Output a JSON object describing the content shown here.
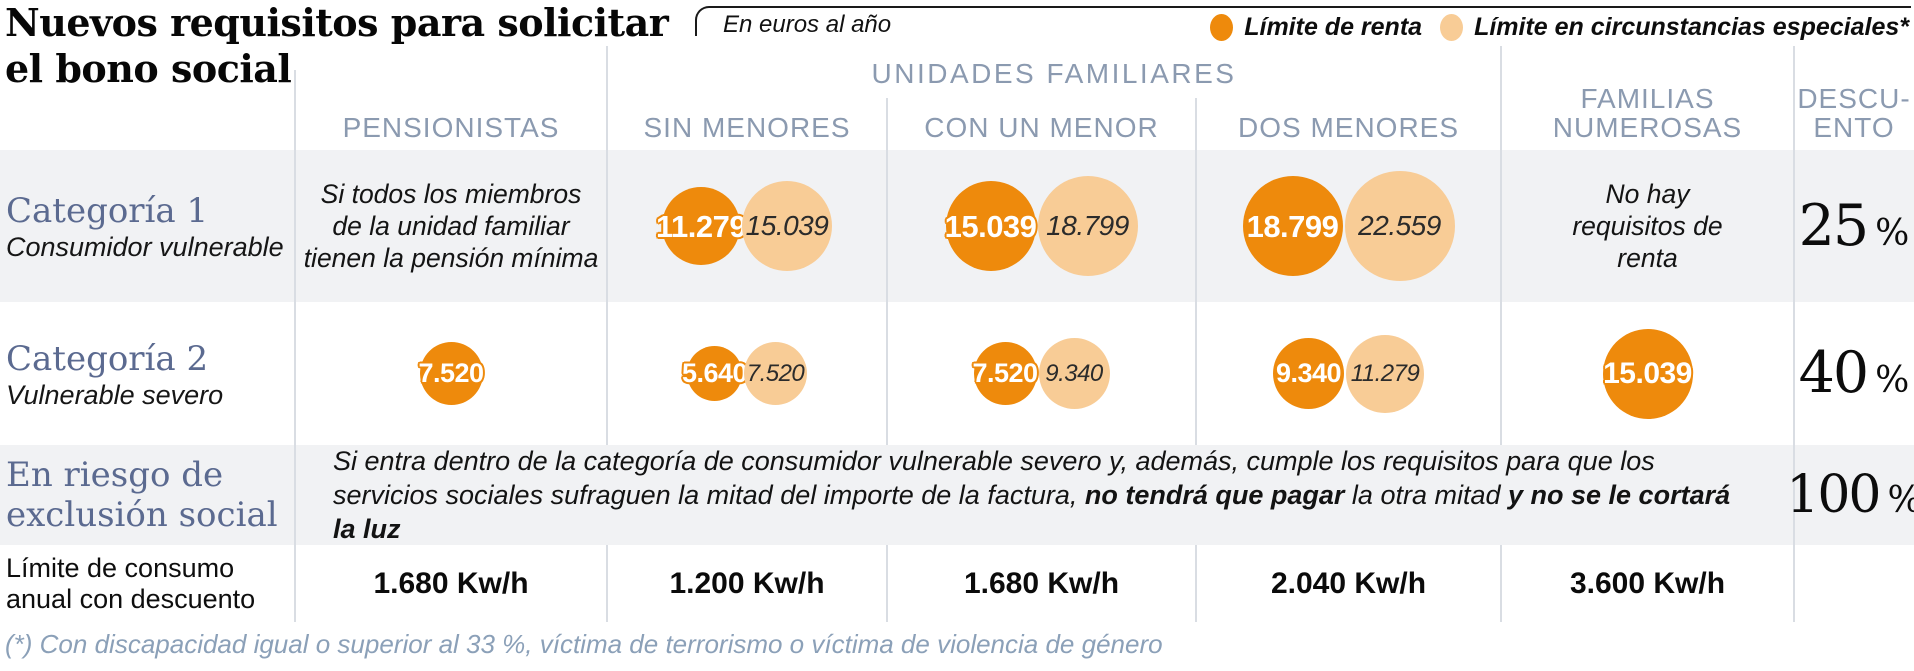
{
  "title": {
    "line1": "Nuevos requisitos para solicitar",
    "line2": "el bono social"
  },
  "unit_note": "En euros al año",
  "legend": {
    "renta": "Límite de renta",
    "especial": "Límite en circunstancias especiales*"
  },
  "columns": {
    "group": "UNIDADES FAMILIARES",
    "pensionistas": "PENSIONISTAS",
    "sin_menores": "SIN MENORES",
    "con_un_menor": "CON UN MENOR",
    "dos_menores": "DOS MENORES",
    "familias_line1": "FAMILIAS",
    "familias_line2": "NUMEROSAS",
    "descuento_line1": "DESCU-",
    "descuento_line2": "ENTO"
  },
  "rows": {
    "cat1": {
      "name": "Categoría 1",
      "subtitle": "Consumidor vulnerable",
      "pensionistas_note": "Si todos los miembros de la unidad familiar tienen la pensión mínima",
      "familias_note": "No hay requisitos de renta",
      "descuento": {
        "value": "25",
        "sign": "%"
      }
    },
    "cat2": {
      "name": "Categoría 2",
      "subtitle": "Vulnerable severo",
      "descuento": {
        "value": "40",
        "sign": "%"
      }
    },
    "riesgo": {
      "name_line1": "En riesgo de",
      "name_line2": "exclusión social",
      "text": {
        "normal1": "Si entra dentro de la categoría de consumidor vulnerable severo y, además, cumple los requisitos para que los servicios sociales sufraguen la mitad del importe de la factura, ",
        "bold1": "no tendrá que pagar",
        "normal2": " la otra mitad ",
        "bold2": "y no se le cortará la luz"
      },
      "descuento": {
        "value": "100",
        "sign": "%"
      }
    },
    "consumo": {
      "label_line1": "Límite de consumo",
      "label_line2": "anual con descuento",
      "values": [
        "1.680 Kw/h",
        "1.200 Kw/h",
        "1.680 Kw/h",
        "2.040 Kw/h",
        "3.600 Kw/h"
      ]
    }
  },
  "bubbles": {
    "cat1_sin_renta": {
      "display": "11.279",
      "value": 11279,
      "type": "renta"
    },
    "cat1_sin_especial": {
      "display": "15.039",
      "value": 15039,
      "type": "especial"
    },
    "cat1_con_renta": {
      "display": "15.039",
      "value": 15039,
      "type": "renta"
    },
    "cat1_con_especial": {
      "display": "18.799",
      "value": 18799,
      "type": "especial"
    },
    "cat1_dos_renta": {
      "display": "18.799",
      "value": 18799,
      "type": "renta"
    },
    "cat1_dos_especial": {
      "display": "22.559",
      "value": 22559,
      "type": "especial"
    },
    "cat2_pens_renta": {
      "display": "7.520",
      "value": 7520,
      "type": "renta"
    },
    "cat2_sin_renta": {
      "display": "5.640",
      "value": 5640,
      "type": "renta"
    },
    "cat2_sin_especial": {
      "display": "7.520",
      "value": 7520,
      "type": "especial"
    },
    "cat2_con_renta": {
      "display": "7.520",
      "value": 7520,
      "type": "renta"
    },
    "cat2_con_especial": {
      "display": "9.340",
      "value": 9340,
      "type": "especial"
    },
    "cat2_dos_renta": {
      "display": "9.340",
      "value": 9340,
      "type": "renta"
    },
    "cat2_dos_especial": {
      "display": "11.279",
      "value": 11279,
      "type": "especial"
    },
    "cat2_fam_renta": {
      "display": "15.039",
      "value": 15039,
      "type": "renta"
    }
  },
  "footnote": "(*) Con discapacidad igual o superior al 33 %, víctima de terrorismo o víctima de violencia de género",
  "colors": {
    "limite_renta": "#ee8a0c",
    "limite_especial": "#f8cc96",
    "header_blue_gray": "#8b9ab0",
    "category_slate": "#5b6a90",
    "row_shade": "#f1f2f4",
    "footnote_blue": "#8ba0b8"
  },
  "chart_data": {
    "type": "table",
    "title": "Nuevos requisitos para solicitar el bono social",
    "unit": "En euros al año",
    "legend": [
      "Límite de renta",
      "Límite en circunstancias especiales*"
    ],
    "legend_note": "(*) Con discapacidad igual o superior al 33 %, víctima de terrorismo o víctima de violencia de género",
    "columns": [
      "PENSIONISTAS",
      "SIN MENORES",
      "CON UN MENOR",
      "DOS MENORES",
      "FAMILIAS NUMEROSAS",
      "DESCUENTO"
    ],
    "bubble_encoding": "circle area proportional to income limit in euros per year",
    "rows": [
      {
        "category": "Categoría 1 (Consumidor vulnerable)",
        "pensionistas": "Si todos los miembros de la unidad familiar tienen la pensión mínima",
        "sin_menores": {
          "limite_renta": 11279,
          "limite_especial": 15039
        },
        "con_un_menor": {
          "limite_renta": 15039,
          "limite_especial": 18799
        },
        "dos_menores": {
          "limite_renta": 18799,
          "limite_especial": 22559
        },
        "familias_numerosas": "No hay requisitos de renta",
        "descuento_pct": 25
      },
      {
        "category": "Categoría 2 (Vulnerable severo)",
        "pensionistas": {
          "limite_renta": 7520
        },
        "sin_menores": {
          "limite_renta": 5640,
          "limite_especial": 7520
        },
        "con_un_menor": {
          "limite_renta": 7520,
          "limite_especial": 9340
        },
        "dos_menores": {
          "limite_renta": 9340,
          "limite_especial": 11279
        },
        "familias_numerosas": {
          "limite_renta": 15039
        },
        "descuento_pct": 40
      },
      {
        "category": "En riesgo de exclusión social",
        "condition": "Si entra dentro de la categoría de consumidor vulnerable severo y, además, cumple los requisitos para que los servicios sociales sufraguen la mitad del importe de la factura, no tendrá que pagar la otra mitad y no se le cortará la luz",
        "descuento_pct": 100
      },
      {
        "category": "Límite de consumo anual con descuento",
        "values_kwh": [
          1680,
          1200,
          1680,
          2040,
          3600
        ]
      }
    ]
  }
}
